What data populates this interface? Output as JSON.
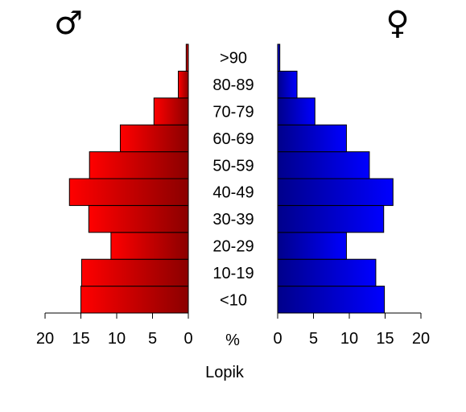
{
  "chart_data": {
    "type": "bar",
    "subtype": "population-pyramid",
    "title": "",
    "xlabel": "Lopik",
    "center_unit_label": "%",
    "categories": [
      "<10",
      "10-19",
      "20-29",
      "30-39",
      "40-49",
      "50-59",
      "60-69",
      "70-79",
      "80-89",
      ">90"
    ],
    "series": [
      {
        "side": "left",
        "symbol": "♂",
        "values": [
          15.0,
          14.9,
          10.8,
          13.9,
          16.6,
          13.8,
          9.5,
          4.8,
          1.4,
          0.3
        ],
        "color_outer": "#ff0000",
        "color_inner": "#8b0000"
      },
      {
        "side": "right",
        "symbol": "♀",
        "values": [
          14.9,
          13.7,
          9.6,
          14.8,
          16.1,
          12.8,
          9.6,
          5.2,
          2.7,
          0.3
        ],
        "color_outer": "#0000ff",
        "color_inner": "#00008b"
      }
    ],
    "xlim": [
      0,
      20
    ],
    "xticks": [
      0,
      5,
      10,
      15,
      20
    ],
    "xtick_labels": [
      "0",
      "5",
      "10",
      "15",
      "20"
    ],
    "grid": false,
    "legend": "none"
  }
}
